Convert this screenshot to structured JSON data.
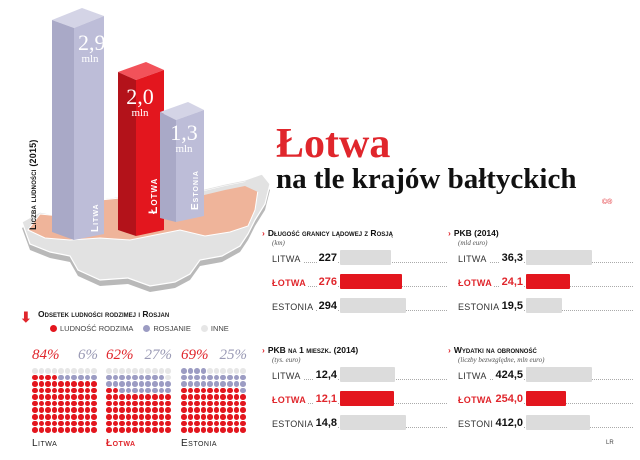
{
  "header": {
    "title": "Łotwa",
    "subtitle": "na tle krajów bałtyckich",
    "credit": "©®"
  },
  "colors": {
    "accent_red": "#e3161e",
    "bar_lavender": "#bcbcd6",
    "bar_gray": "#dcdcdc",
    "map_salmon": "#efb49a",
    "map_gray": "#e2e2e2",
    "dot_purple": "#9c9cc3",
    "dot_gray": "#e6e6e6"
  },
  "population": {
    "axis_label": "Liczba ludności (2015)",
    "bars": [
      {
        "country": "Litwa",
        "value": "2,9",
        "unit": "mln"
      },
      {
        "country": "Łotwa",
        "value": "2,0",
        "unit": "mln"
      },
      {
        "country": "Estonia",
        "value": "1,3",
        "unit": "mln"
      }
    ]
  },
  "panels": [
    {
      "title": "Długość granicy lądowej z Rosją",
      "subtitle": "(km)",
      "rows": [
        {
          "country": "LITWA",
          "value": "227"
        },
        {
          "country": "ŁOTWA",
          "value": "276"
        },
        {
          "country": "ESTONIA",
          "value": "294"
        }
      ]
    },
    {
      "title": "PKB (2014)",
      "subtitle": "(mld euro)",
      "rows": [
        {
          "country": "LITWA",
          "value": "36,3"
        },
        {
          "country": "ŁOTWA",
          "value": "24,1"
        },
        {
          "country": "ESTONIA",
          "value": "19,5"
        }
      ]
    },
    {
      "title": "PKB na 1 mieszk. (2014)",
      "subtitle": "(tys. euro)",
      "rows": [
        {
          "country": "LITWA",
          "value": "12,4"
        },
        {
          "country": "ŁOTWA",
          "value": "12,1"
        },
        {
          "country": "ESTONIA",
          "value": "14,8"
        }
      ]
    },
    {
      "title": "Wydatki na obronność",
      "subtitle": "(liczby bezwzględne, mln euro)",
      "rows": [
        {
          "country": "LITWA",
          "value": "424,5"
        },
        {
          "country": "ŁOTWA",
          "value": "254,0"
        },
        {
          "country": "ESTONIA",
          "value": "412,0"
        }
      ]
    }
  ],
  "ethnic": {
    "title": "Odsetek ludności rodzimej i Rosjan",
    "legend": [
      "LUDNOŚĆ RODZIMA",
      "ROSJANIE",
      "INNE"
    ],
    "countries": [
      {
        "name": "Litwa",
        "native_label": "84%",
        "russian_label": "6%"
      },
      {
        "name": "Łotwa",
        "native_label": "62%",
        "russian_label": "27%"
      },
      {
        "name": "Estonia",
        "native_label": "69%",
        "russian_label": "25%"
      }
    ]
  },
  "page_number": "LR",
  "chart_data": [
    {
      "type": "bar",
      "title": "Liczba ludności (2015)",
      "categories": [
        "Litwa",
        "Łotwa",
        "Estonia"
      ],
      "values": [
        2.9,
        2.0,
        1.3
      ],
      "ylabel": "mln",
      "highlight": "Łotwa"
    },
    {
      "type": "bar",
      "orientation": "horizontal",
      "title": "Długość granicy lądowej z Rosją",
      "ylabel": "km",
      "categories": [
        "Litwa",
        "Łotwa",
        "Estonia"
      ],
      "values": [
        227,
        276,
        294
      ]
    },
    {
      "type": "bar",
      "orientation": "horizontal",
      "title": "PKB (2014)",
      "ylabel": "mld euro",
      "categories": [
        "Litwa",
        "Łotwa",
        "Estonia"
      ],
      "values": [
        36.3,
        24.1,
        19.5
      ]
    },
    {
      "type": "bar",
      "orientation": "horizontal",
      "title": "PKB na 1 mieszk. (2014)",
      "ylabel": "tys. euro",
      "categories": [
        "Litwa",
        "Łotwa",
        "Estonia"
      ],
      "values": [
        12.4,
        12.1,
        14.8
      ]
    },
    {
      "type": "bar",
      "orientation": "horizontal",
      "title": "Wydatki na obronność",
      "ylabel": "liczby bezwzględne, mln euro",
      "categories": [
        "Litwa",
        "Łotwa",
        "Estonia"
      ],
      "values": [
        424.5,
        254.0,
        412.0
      ]
    },
    {
      "type": "waffle",
      "title": "Odsetek ludności rodzimej i Rosjan",
      "categories": [
        "Litwa",
        "Łotwa",
        "Estonia"
      ],
      "series": [
        {
          "name": "Ludność rodzima",
          "values": [
            84,
            62,
            69
          ]
        },
        {
          "name": "Rosjanie",
          "values": [
            6,
            27,
            25
          ]
        },
        {
          "name": "Inne",
          "values": [
            10,
            11,
            6
          ]
        }
      ]
    }
  ]
}
